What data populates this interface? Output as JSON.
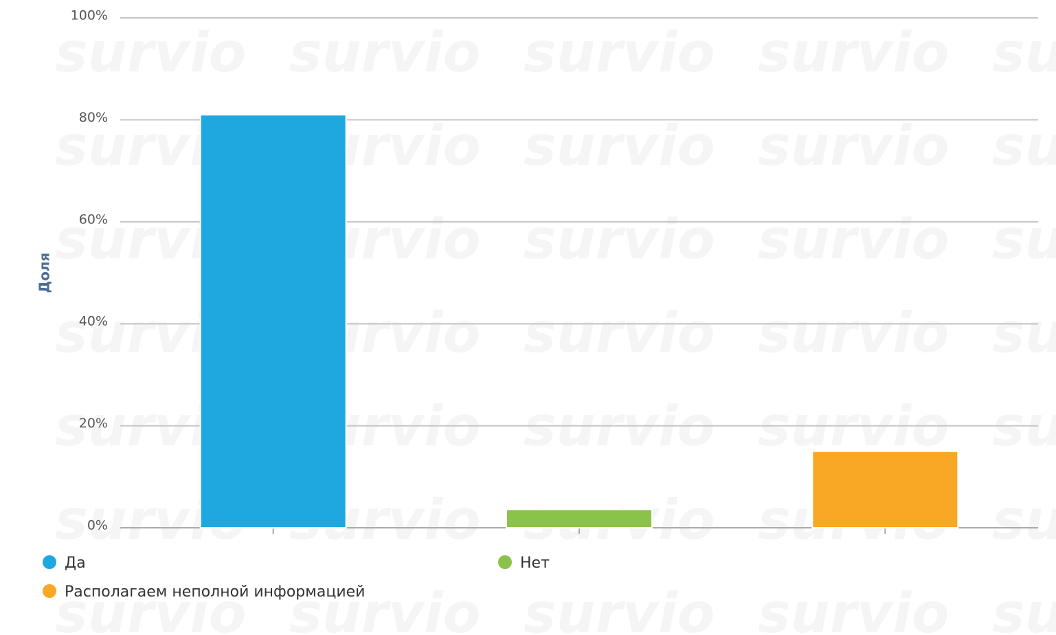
{
  "chart_data": {
    "type": "bar",
    "y_label": "Доля",
    "watermark": "survio",
    "categories": [
      null,
      null,
      null
    ],
    "values": [
      81,
      3.6,
      15
    ],
    "colors": [
      "#1fa8e0",
      "#8bc34a",
      "#f9a825"
    ],
    "legend": [
      "Да",
      "Нет",
      "Располагаем неполной информацией"
    ],
    "ylim": [
      0,
      100
    ],
    "yticks": [
      {
        "value": 0,
        "label": "0%"
      },
      {
        "value": 20,
        "label": "20%"
      },
      {
        "value": 40,
        "label": "40%"
      },
      {
        "value": 60,
        "label": "60%"
      },
      {
        "value": 80,
        "label": "80%"
      },
      {
        "value": 100,
        "label": "100%"
      }
    ],
    "grid": true
  }
}
